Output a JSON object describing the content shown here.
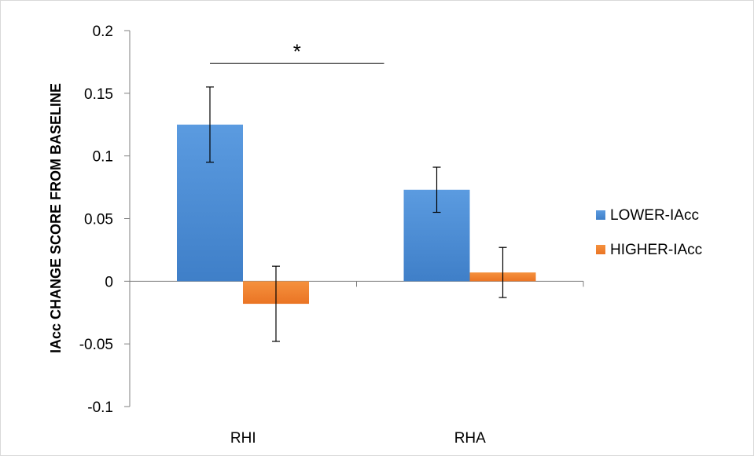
{
  "chart_data": {
    "type": "bar",
    "title": "",
    "xlabel": "",
    "ylabel": "IAcc CHANGE SCORE FROM BASELINE",
    "categories": [
      "RHI",
      "RHA"
    ],
    "series": [
      {
        "name": "LOWER-IAcc",
        "values": [
          0.125,
          0.073
        ],
        "errors": [
          0.03,
          0.018
        ],
        "color": "#4f8fd6"
      },
      {
        "name": "HIGHER-IAcc",
        "values": [
          -0.018,
          0.007
        ],
        "errors": [
          0.03,
          0.02
        ],
        "color": "#f0822e"
      }
    ],
    "ylim": [
      -0.1,
      0.2
    ],
    "yticks": [
      0.2,
      0.15,
      0.1,
      0.05,
      0,
      -0.05,
      -0.1
    ],
    "ytick_labels": [
      "0.2",
      "0.15",
      "0.1",
      "0.05",
      "0",
      "-0.05",
      "-0.1"
    ],
    "legend_position": "right",
    "grid": false,
    "annotations": [
      {
        "text": "*",
        "type": "significance-bracket",
        "between": [
          "RHI",
          "RHA"
        ],
        "y": 0.174
      }
    ]
  }
}
